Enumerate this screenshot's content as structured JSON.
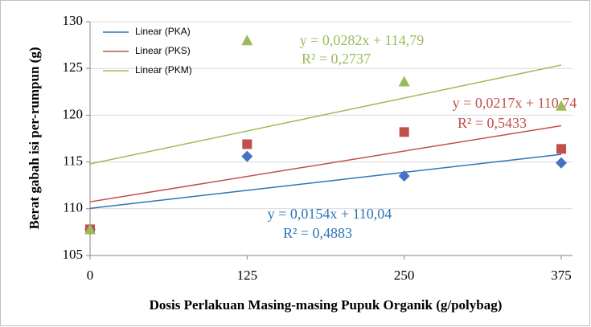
{
  "chart_data": {
    "type": "scatter",
    "xlabel": "Dosis Perlakuan Masing-masing Pupuk Organik (g/polybag)",
    "ylabel": "Berat gabah isi per-rumpun (g)",
    "xlim": [
      0,
      375
    ],
    "xticks": [
      0,
      125,
      250,
      375
    ],
    "ylim": [
      105,
      130
    ],
    "yticks": [
      105,
      110,
      115,
      120,
      125,
      130
    ],
    "grid": true,
    "legend": "upper left",
    "x": [
      0,
      125,
      250,
      375
    ],
    "series": [
      {
        "marker": "diamond",
        "color": "#4472c4",
        "values": [
          107.8,
          115.6,
          113.5,
          114.9
        ]
      },
      {
        "marker": "square",
        "color": "#c0504d",
        "values": [
          107.8,
          116.9,
          118.2,
          116.4
        ]
      },
      {
        "marker": "triangle",
        "color": "#9bbb59",
        "values": [
          107.8,
          128.0,
          123.6,
          121.0
        ]
      }
    ],
    "trendlines": [
      {
        "name": "Linear (PKA)",
        "color": "#2e75b6",
        "slope": 0.0154,
        "intercept": 110.04,
        "equation": "y = 0,0154x + 110,04",
        "r2": "R² = 0,4883"
      },
      {
        "name": "Linear (PKS)",
        "color": "#c0504d",
        "slope": 0.0217,
        "intercept": 110.74,
        "equation": "y = 0,0217x + 110,74",
        "r2": "R² = 0,5433"
      },
      {
        "name": "Linear (PKM)",
        "color": "#9bbb59",
        "slope": 0.0282,
        "intercept": 114.79,
        "equation": "y = 0,0282x + 114,79",
        "r2": "R² = 0,2737"
      }
    ]
  }
}
